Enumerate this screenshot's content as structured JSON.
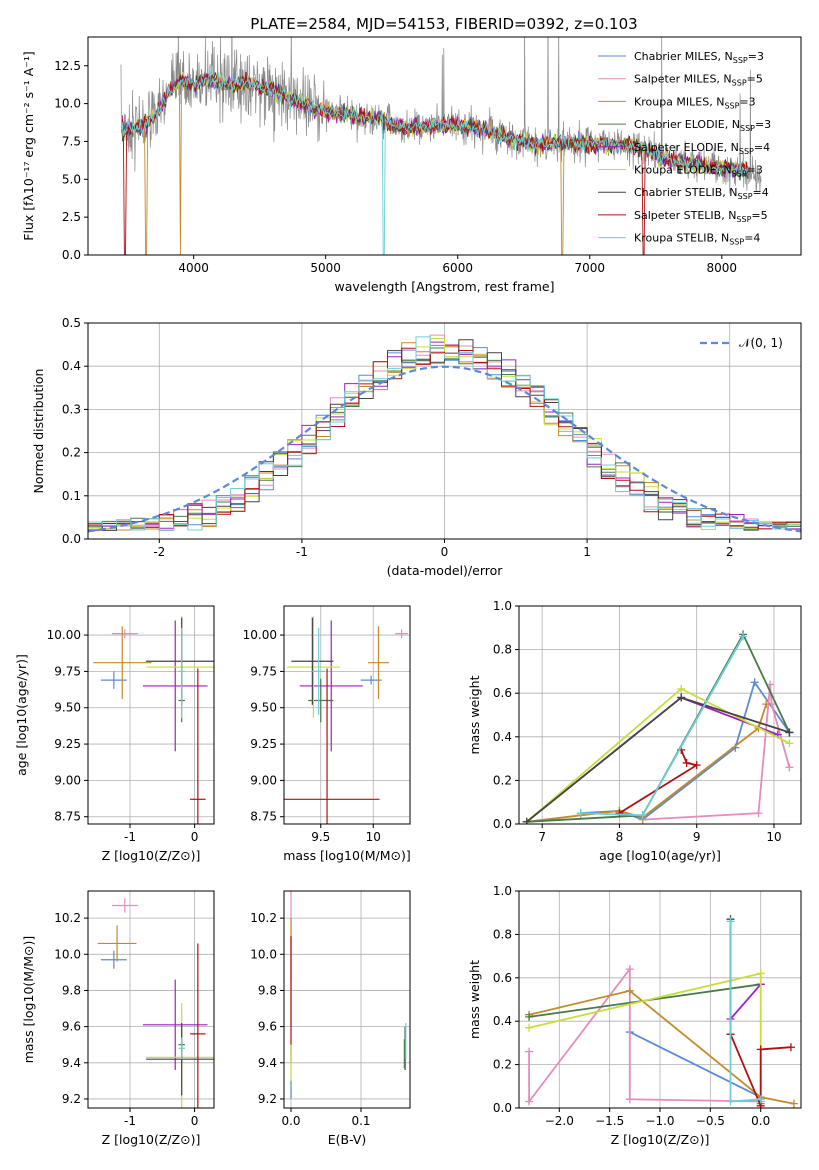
{
  "figure": {
    "title": "PLATE=2584, MJD=54153, FIBERID=0392, z=0.103"
  },
  "colors": {
    "Chabrier MILES": "#5b8ad6",
    "Salpeter MILES": "#e58bbd",
    "Kroupa MILES": "#c48a2a",
    "Chabrier ELODIE": "#4a7a4a",
    "Salpeter ELODIE": "#a020c0",
    "Kroupa ELODIE": "#c8dc3c",
    "Chabrier STELIB": "#444444",
    "Salpeter STELIB": "#b01010",
    "Kroupa STELIB": "#6ccfd6",
    "Observed": "#888888",
    "Normal": "#5b8ad6"
  },
  "chart_data": [
    {
      "id": "spectrum",
      "type": "line",
      "xlabel": "wavelength [Angstrom, rest frame]",
      "ylabel": "Flux [fλ10⁻¹⁷ erg cm⁻² s⁻¹ A⁻¹]",
      "xlim": [
        3200,
        8600
      ],
      "ylim": [
        0,
        14.4
      ],
      "xticks": [
        4000,
        5000,
        6000,
        7000,
        8000
      ],
      "yticks": [
        "0.0",
        "2.5",
        "5.0",
        "7.5",
        "10.0",
        "12.5"
      ],
      "grid": false,
      "legend": "upper-right",
      "continuum": {
        "x": [
          3450,
          3600,
          3700,
          3800,
          3900,
          4000,
          4100,
          4200,
          4300,
          4400,
          4500,
          4600,
          4800,
          5000,
          5200,
          5400,
          5600,
          5800,
          6000,
          6200,
          6400,
          6600,
          6800,
          7000,
          7200,
          7400,
          7600,
          7800,
          8000,
          8200,
          8300
        ],
        "y": [
          8.3,
          8.5,
          9.0,
          10.6,
          11.6,
          11.2,
          11.6,
          11.4,
          11.2,
          11.4,
          11.1,
          10.9,
          10.0,
          9.5,
          9.2,
          9.0,
          8.4,
          8.5,
          8.6,
          8.3,
          7.6,
          7.3,
          7.4,
          7.3,
          7.3,
          7.1,
          6.2,
          6.0,
          5.8,
          5.5,
          5.3
        ]
      },
      "series": [
        {
          "name": "Chabrier MILES",
          "nssp": "3"
        },
        {
          "name": "Salpeter MILES",
          "nssp": "5"
        },
        {
          "name": "Kroupa MILES",
          "nssp": "3"
        },
        {
          "name": "Chabrier ELODIE",
          "nssp": "3"
        },
        {
          "name": "Salpeter ELODIE",
          "nssp": "4"
        },
        {
          "name": "Kroupa ELODIE",
          "nssp": "3"
        },
        {
          "name": "Chabrier STELIB",
          "nssp": "4"
        },
        {
          "name": "Salpeter STELIB",
          "nssp": "5"
        },
        {
          "name": "Kroupa STELIB",
          "nssp": "4"
        }
      ]
    },
    {
      "id": "residuals",
      "type": "line",
      "xlabel": "(data-model)/error",
      "ylabel": "Normed distribution",
      "xlim": [
        -2.5,
        2.5
      ],
      "ylim": [
        0,
        0.5
      ],
      "xticks": [
        -2,
        -1,
        0,
        1,
        2
      ],
      "yticks": [
        "0.0",
        "0.1",
        "0.2",
        "0.3",
        "0.4",
        "0.5"
      ],
      "grid": true,
      "legend": "upper-right",
      "normal_label": "𝒩(0, 1)",
      "normal": {
        "mean": 0,
        "sigma": 1
      }
    },
    {
      "id": "age-vs-z",
      "type": "scatter",
      "xlabel": "Z [log10(Z/Z⊙)]",
      "ylabel": "age [log10(age/yr)]",
      "xlim": [
        -1.65,
        0.3
      ],
      "ylim": [
        8.7,
        10.2
      ],
      "xticks": [
        -1,
        0
      ],
      "yticks": [
        "8.75",
        "9.00",
        "9.25",
        "9.50",
        "9.75",
        "10.00"
      ],
      "grid": true,
      "points": [
        {
          "series": "Chabrier MILES",
          "x": -1.25,
          "y": 9.69,
          "xerr": 0.2,
          "yerr": 0.06
        },
        {
          "series": "Salpeter MILES",
          "x": -1.08,
          "y": 10.01,
          "xerr": 0.2,
          "yerr": 0.03
        },
        {
          "series": "Kroupa MILES",
          "x": -1.12,
          "y": 9.81,
          "xerr": 0.45,
          "yerr": 0.25
        },
        {
          "series": "Chabrier ELODIE",
          "x": -0.2,
          "y": 9.55,
          "xerr": 0.05,
          "yerr": 0.15
        },
        {
          "series": "Salpeter ELODIE",
          "x": -0.3,
          "y": 9.65,
          "xerr": 0.5,
          "yerr": 0.45
        },
        {
          "series": "Kroupa ELODIE",
          "x": -0.2,
          "y": 9.78,
          "xerr": 0.55,
          "yerr": 0.35
        },
        {
          "series": "Chabrier STELIB",
          "x": -0.2,
          "y": 9.82,
          "xerr": 0.55,
          "yerr": 0.3
        },
        {
          "series": "Salpeter STELIB",
          "x": 0.05,
          "y": 8.87,
          "xerr": 0.12,
          "yerr": 0.9
        },
        {
          "series": "Kroupa STELIB",
          "x": -0.2,
          "y": 9.75,
          "xerr": 0.05,
          "yerr": 0.3
        }
      ]
    },
    {
      "id": "age-vs-mass",
      "type": "scatter",
      "xlabel": "mass [log10(M/M⊙)]",
      "ylabel": "",
      "xlim": [
        9.15,
        10.35
      ],
      "ylim": [
        8.7,
        10.2
      ],
      "xticks": [
        9.5,
        10.0
      ],
      "yticks": [
        "8.75",
        "9.00",
        "9.25",
        "9.50",
        "9.75",
        "10.00"
      ],
      "grid": true,
      "points": [
        {
          "series": "Chabrier MILES",
          "x": 9.98,
          "y": 9.69,
          "xerr": 0.1,
          "yerr": 0.03
        },
        {
          "series": "Salpeter MILES",
          "x": 10.27,
          "y": 10.01,
          "xerr": 0.06,
          "yerr": 0.03
        },
        {
          "series": "Kroupa MILES",
          "x": 10.05,
          "y": 9.81,
          "xerr": 0.1,
          "yerr": 0.25
        },
        {
          "series": "Chabrier ELODIE",
          "x": 9.5,
          "y": 9.55,
          "xerr": 0.12,
          "yerr": 0.15
        },
        {
          "series": "Salpeter ELODIE",
          "x": 9.6,
          "y": 9.65,
          "xerr": 0.3,
          "yerr": 0.45
        },
        {
          "series": "Kroupa ELODIE",
          "x": 9.43,
          "y": 9.78,
          "xerr": 0.25,
          "yerr": 0.35
        },
        {
          "series": "Chabrier STELIB",
          "x": 9.42,
          "y": 9.82,
          "xerr": 0.2,
          "yerr": 0.3
        },
        {
          "series": "Salpeter STELIB",
          "x": 9.56,
          "y": 8.87,
          "xerr": 0.5,
          "yerr": 0.9
        },
        {
          "series": "Kroupa STELIB",
          "x": 9.48,
          "y": 9.75,
          "xerr": 0.06,
          "yerr": 0.3
        }
      ]
    },
    {
      "id": "mass-vs-z",
      "type": "scatter",
      "xlabel": "Z [log10(Z/Z⊙)]",
      "ylabel": "mass [log10(M/M⊙)]",
      "xlim": [
        -1.65,
        0.3
      ],
      "ylim": [
        9.15,
        10.35
      ],
      "xticks": [
        -1,
        0
      ],
      "yticks": [
        "9.2",
        "9.4",
        "9.6",
        "9.8",
        "10.0",
        "10.2"
      ],
      "grid": true,
      "points": [
        {
          "series": "Chabrier MILES",
          "x": -1.25,
          "y": 9.97,
          "xerr": 0.2,
          "yerr": 0.05
        },
        {
          "series": "Salpeter MILES",
          "x": -1.08,
          "y": 10.27,
          "xerr": 0.2,
          "yerr": 0.04
        },
        {
          "series": "Kroupa MILES",
          "x": -1.2,
          "y": 10.06,
          "xerr": 0.3,
          "yerr": 0.1
        },
        {
          "series": "Chabrier ELODIE",
          "x": -0.2,
          "y": 9.5,
          "xerr": 0.05,
          "yerr": 0.12
        },
        {
          "series": "Salpeter ELODIE",
          "x": -0.3,
          "y": 9.61,
          "xerr": 0.5,
          "yerr": 0.25
        },
        {
          "series": "Kroupa ELODIE",
          "x": -0.2,
          "y": 9.43,
          "xerr": 0.55,
          "yerr": 0.3
        },
        {
          "series": "Chabrier STELIB",
          "x": -0.2,
          "y": 9.42,
          "xerr": 0.55,
          "yerr": 0.2
        },
        {
          "series": "Salpeter STELIB",
          "x": 0.05,
          "y": 9.56,
          "xerr": 0.12,
          "yerr": 0.5
        },
        {
          "series": "Kroupa STELIB",
          "x": -0.2,
          "y": 9.48,
          "xerr": 0.05,
          "yerr": 0.06
        }
      ]
    },
    {
      "id": "mass-vs-ebv",
      "type": "scatter",
      "xlabel": "E(B-V)",
      "ylabel": "",
      "xlim": [
        -0.01,
        0.17
      ],
      "ylim": [
        9.15,
        10.35
      ],
      "xticks": [
        "0.0",
        "0.1"
      ],
      "yticks": [
        "9.2",
        "9.4",
        "9.6",
        "9.8",
        "10.0",
        "10.2"
      ],
      "grid": true,
      "points": [
        {
          "series": "Salpeter MILES",
          "x": 0.0,
          "y": 10.1,
          "xerr": 0.0,
          "yerr": 0.25
        },
        {
          "series": "Kroupa MILES",
          "x": 0.0,
          "y": 9.9,
          "xerr": 0.0,
          "yerr": 0.3
        },
        {
          "series": "Salpeter STELIB",
          "x": 0.0,
          "y": 9.75,
          "xerr": 0.0,
          "yerr": 0.35
        },
        {
          "series": "Kroupa ELODIE",
          "x": 0.0,
          "y": 9.35,
          "xerr": 0.0,
          "yerr": 0.15
        },
        {
          "series": "Chabrier MILES",
          "x": 0.0,
          "y": 9.25,
          "xerr": 0.0,
          "yerr": 0.05
        },
        {
          "series": "Chabrier STELIB",
          "x": 0.163,
          "y": 9.48,
          "xerr": 0.0,
          "yerr": 0.12
        },
        {
          "series": "Kroupa STELIB",
          "x": 0.164,
          "y": 9.52,
          "xerr": 0.0,
          "yerr": 0.1
        },
        {
          "series": "Chabrier ELODIE",
          "x": 0.162,
          "y": 9.45,
          "xerr": 0.0,
          "yerr": 0.08
        }
      ]
    },
    {
      "id": "weight-vs-age",
      "type": "line",
      "xlabel": "age [log10(age/yr)]",
      "ylabel": "mass weight",
      "xlim": [
        6.7,
        10.35
      ],
      "ylim": [
        0,
        1.0
      ],
      "xticks": [
        7,
        8,
        9,
        10
      ],
      "yticks": [
        "0.0",
        "0.2",
        "0.4",
        "0.6",
        "0.8",
        "1.0"
      ],
      "grid": true,
      "series": [
        {
          "name": "Chabrier MILES",
          "x": [
            7.5,
            8.0,
            8.3,
            9.5,
            9.75,
            10.2
          ],
          "y": [
            0.05,
            0.06,
            0.02,
            0.35,
            0.65,
            0.42
          ]
        },
        {
          "name": "Salpeter MILES",
          "x": [
            8.3,
            9.8,
            9.95,
            9.97,
            10.2
          ],
          "y": [
            0.02,
            0.05,
            0.64,
            0.55,
            0.26
          ]
        },
        {
          "name": "Kroupa MILES",
          "x": [
            6.8,
            7.5,
            8.0,
            8.3,
            9.8,
            9.9
          ],
          "y": [
            0.01,
            0.04,
            0.06,
            0.03,
            0.44,
            0.55
          ]
        },
        {
          "name": "Chabrier ELODIE",
          "x": [
            6.8,
            8.3,
            9.6,
            10.2
          ],
          "y": [
            0.01,
            0.04,
            0.87,
            0.42
          ]
        },
        {
          "name": "Salpeter ELODIE",
          "x": [
            6.8,
            8.8,
            10.05
          ],
          "y": [
            0.01,
            0.58,
            0.41
          ]
        },
        {
          "name": "Kroupa ELODIE",
          "x": [
            6.8,
            8.8,
            10.2
          ],
          "y": [
            0.01,
            0.62,
            0.37
          ]
        },
        {
          "name": "Chabrier STELIB",
          "x": [
            6.8,
            8.8,
            10.2
          ],
          "y": [
            0.01,
            0.58,
            0.42
          ]
        },
        {
          "name": "Salpeter STELIB",
          "x": [
            8.8,
            8.87,
            9.0,
            8.0
          ],
          "y": [
            0.34,
            0.28,
            0.27,
            0.05
          ]
        },
        {
          "name": "Kroupa STELIB",
          "x": [
            7.5,
            8.3,
            9.6
          ],
          "y": [
            0.05,
            0.04,
            0.86
          ]
        }
      ]
    },
    {
      "id": "weight-vs-z",
      "type": "line",
      "xlabel": "Z [log10(Z/Z⊙)]",
      "ylabel": "mass weight",
      "xlim": [
        -2.4,
        0.4
      ],
      "ylim": [
        0,
        1.0
      ],
      "xticks": [
        "−2.0",
        "−1.5",
        "−1.0",
        "−0.5",
        "0.0"
      ],
      "xtickvals": [
        -2.0,
        -1.5,
        -1.0,
        -0.5,
        0.0
      ],
      "grid": true,
      "yticks": [
        "0.0",
        "0.2",
        "0.4",
        "0.6",
        "0.8",
        "1.0"
      ],
      "series": [
        {
          "name": "Chabrier MILES",
          "x": [
            -1.3,
            0.0,
            0.0
          ],
          "y": [
            0.35,
            0.05,
            0.02
          ]
        },
        {
          "name": "Salpeter MILES",
          "x": [
            -2.3,
            -2.3,
            -1.3,
            -1.3,
            0.0
          ],
          "y": [
            0.26,
            0.03,
            0.64,
            0.04,
            0.03
          ]
        },
        {
          "name": "Kroupa MILES",
          "x": [
            -2.3,
            -1.3,
            0.0,
            0.33
          ],
          "y": [
            0.43,
            0.54,
            0.05,
            0.02
          ]
        },
        {
          "name": "Chabrier ELODIE",
          "x": [
            -2.3,
            0.0
          ],
          "y": [
            0.42,
            0.57
          ]
        },
        {
          "name": "Salpeter ELODIE",
          "x": [
            -0.3,
            0.0
          ],
          "y": [
            0.41,
            0.57
          ]
        },
        {
          "name": "Kroupa ELODIE",
          "x": [
            -2.3,
            0.0,
            0.0
          ],
          "y": [
            0.37,
            0.62,
            0.0
          ]
        },
        {
          "name": "Chabrier STELIB",
          "x": [
            -0.3,
            -0.3
          ],
          "y": [
            0.34,
            0.87
          ]
        },
        {
          "name": "Salpeter STELIB",
          "x": [
            -0.3,
            0.0,
            0.0,
            0.3
          ],
          "y": [
            0.34,
            0.01,
            0.27,
            0.28
          ]
        },
        {
          "name": "Kroupa STELIB",
          "x": [
            -0.3,
            -0.3,
            0.0
          ],
          "y": [
            0.86,
            0.03,
            0.04
          ]
        }
      ]
    }
  ]
}
